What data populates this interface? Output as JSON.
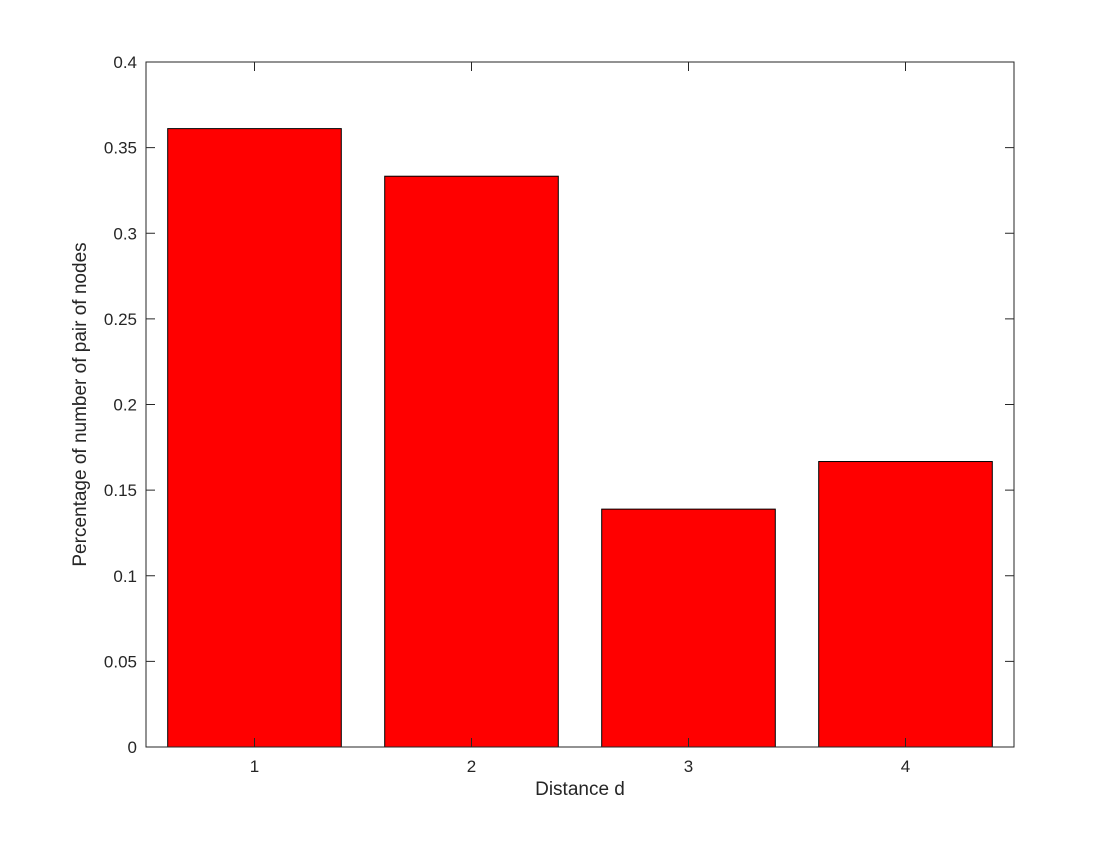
{
  "chart_data": {
    "type": "bar",
    "categories": [
      "1",
      "2",
      "3",
      "4"
    ],
    "values": [
      0.3611,
      0.3333,
      0.1389,
      0.1667
    ],
    "title": "",
    "xlabel": "Distance d",
    "ylabel": "Percentage of number of pair of nodes",
    "xlim": [
      0.5,
      4.5
    ],
    "ylim": [
      0,
      0.4
    ],
    "yticks": [
      0,
      0.05,
      0.1,
      0.15,
      0.2,
      0.25,
      0.3,
      0.35,
      0.4
    ],
    "ytick_labels": [
      "0",
      "0.05",
      "0.1",
      "0.15",
      "0.2",
      "0.25",
      "0.3",
      "0.35",
      "0.4"
    ],
    "bar_color": "#ff0000",
    "bar_edge_color": "#000000",
    "grid": false,
    "box": true
  }
}
